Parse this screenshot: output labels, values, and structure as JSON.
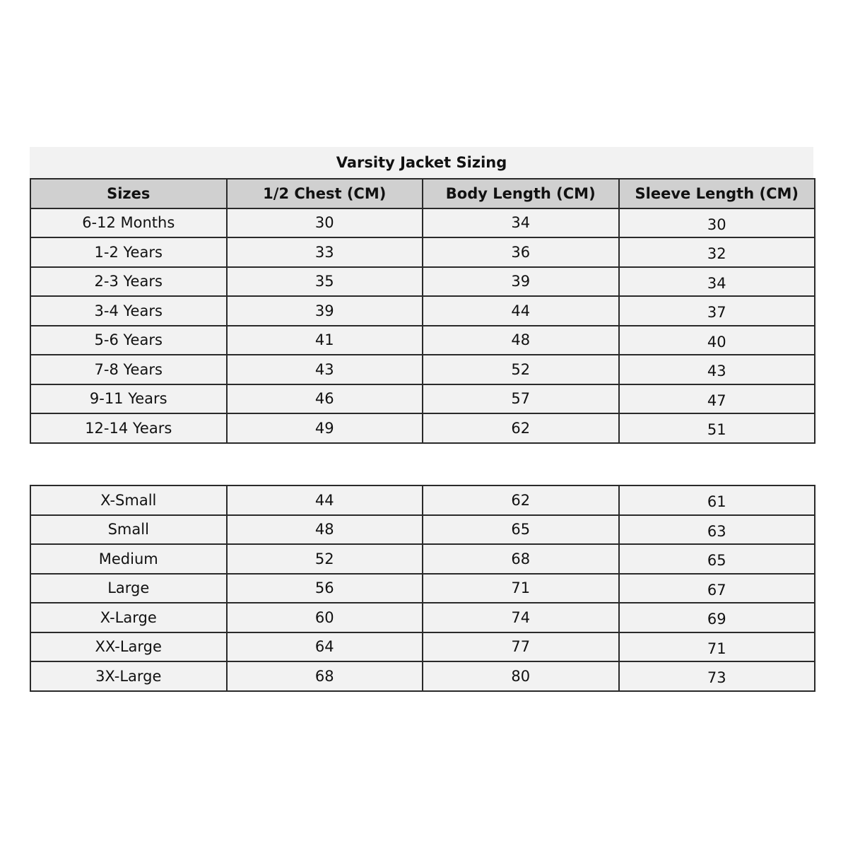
{
  "title": "Varsity Jacket Sizing",
  "headers": [
    "Sizes",
    "1/2 Chest (CM)",
    "Body Length (CM)",
    "Sleeve Length (CM)"
  ],
  "kids_rows": [
    [
      "6-12 Months",
      "30",
      "34",
      "30"
    ],
    [
      "1-2 Years",
      "33",
      "36",
      "32"
    ],
    [
      "2-3 Years",
      "35",
      "39",
      "34"
    ],
    [
      "3-4 Years",
      "39",
      "44",
      "37"
    ],
    [
      "5-6 Years",
      "41",
      "48",
      "40"
    ],
    [
      "7-8 Years",
      "43",
      "52",
      "43"
    ],
    [
      "9-11 Years",
      "46",
      "57",
      "47"
    ],
    [
      "12-14 Years",
      "49",
      "62",
      "51"
    ]
  ],
  "adult_rows": [
    [
      "X-Small",
      "44",
      "62",
      "61"
    ],
    [
      "Small",
      "48",
      "65",
      "63"
    ],
    [
      "Medium",
      "52",
      "68",
      "65"
    ],
    [
      "Large",
      "56",
      "71",
      "67"
    ],
    [
      "X-Large",
      "60",
      "74",
      "69"
    ],
    [
      "XX-Large",
      "64",
      "77",
      "71"
    ],
    [
      "3X-Large",
      "68",
      "80",
      "73"
    ]
  ]
}
